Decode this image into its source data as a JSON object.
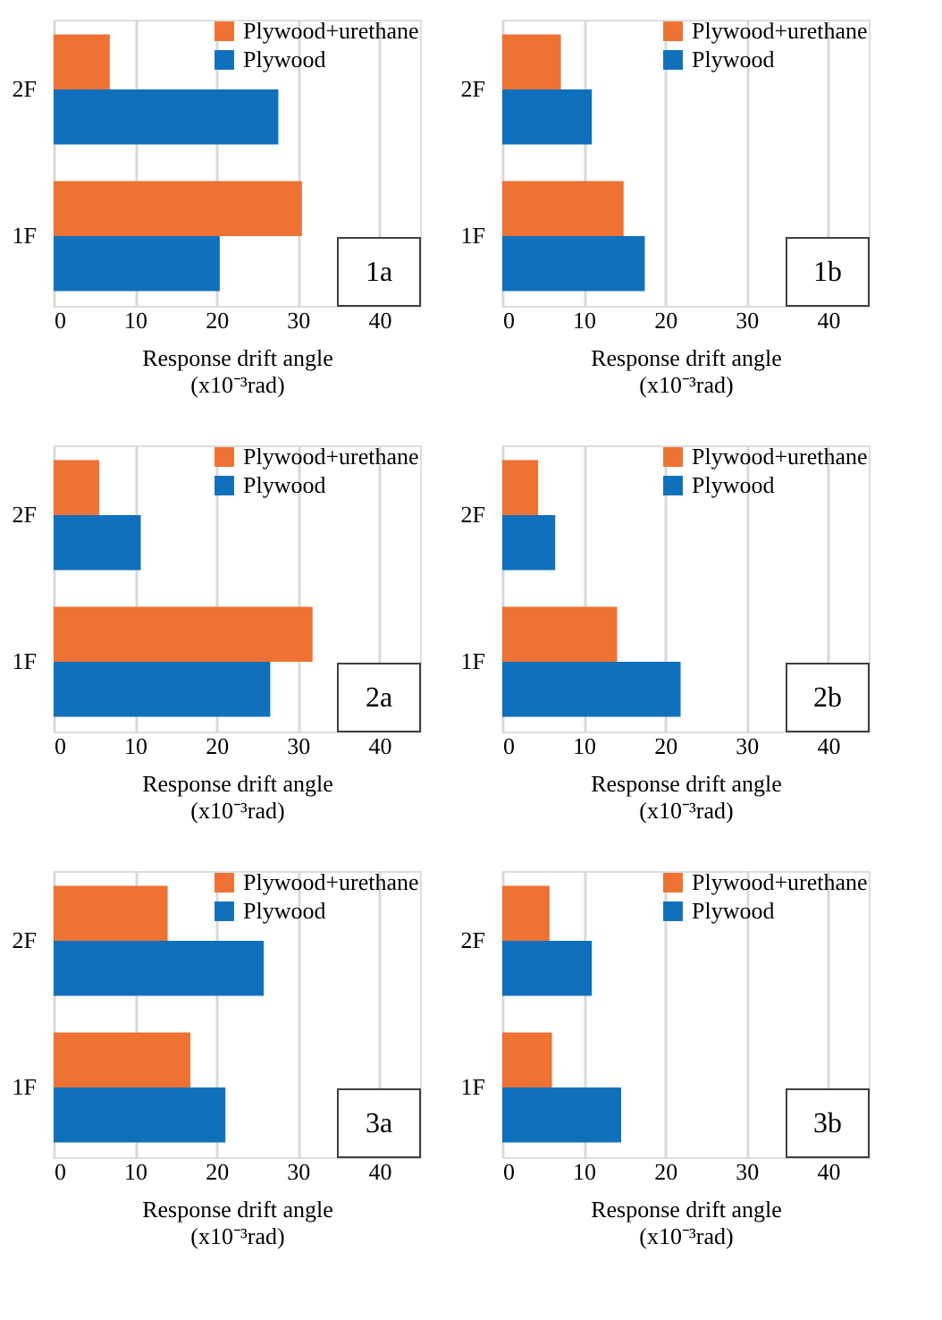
{
  "chart_data": [
    {
      "type": "bar",
      "orientation": "horizontal",
      "categories": [
        "2F",
        "1F"
      ],
      "xlabel": "Response drift angle\n(x10⁻³rad)",
      "xlim": [
        0,
        45
      ],
      "xticks": [
        0,
        10,
        20,
        30,
        40
      ],
      "grid": "x",
      "legend": "top right",
      "annotations": [
        "1a"
      ],
      "series": [
        {
          "name": "Plywood+urethane",
          "color": "#ed7233",
          "values": [
            6.9,
            30.5
          ]
        },
        {
          "name": "Plywood",
          "color": "#1170bb",
          "values": [
            27.6,
            20.4
          ]
        }
      ]
    },
    {
      "type": "bar",
      "orientation": "horizontal",
      "categories": [
        "2F",
        "1F"
      ],
      "xlabel": "Response drift angle\n(x10⁻³rad)",
      "xlim": [
        0,
        45
      ],
      "xticks": [
        0,
        10,
        20,
        30,
        40
      ],
      "grid": "x",
      "legend": "top right",
      "annotations": [
        "1b"
      ],
      "series": [
        {
          "name": "Plywood+urethane",
          "color": "#ed7233",
          "values": [
            7.2,
            14.9
          ]
        },
        {
          "name": "Plywood",
          "color": "#1170bb",
          "values": [
            11.0,
            17.5
          ]
        }
      ]
    },
    {
      "type": "bar",
      "orientation": "horizontal",
      "categories": [
        "2F",
        "1F"
      ],
      "xlabel": "Response drift angle\n(x10⁻³rad)",
      "xlim": [
        0,
        45
      ],
      "xticks": [
        0,
        10,
        20,
        30,
        40
      ],
      "grid": "x",
      "legend": "top right",
      "annotations": [
        "2a"
      ],
      "series": [
        {
          "name": "Plywood+urethane",
          "color": "#ed7233",
          "values": [
            5.6,
            31.8
          ]
        },
        {
          "name": "Plywood",
          "color": "#1170bb",
          "values": [
            10.7,
            26.6
          ]
        }
      ]
    },
    {
      "type": "bar",
      "orientation": "horizontal",
      "categories": [
        "2F",
        "1F"
      ],
      "xlabel": "Response drift angle\n(x10⁻³rad)",
      "xlim": [
        0,
        45
      ],
      "xticks": [
        0,
        10,
        20,
        30,
        40
      ],
      "grid": "x",
      "legend": "top right",
      "annotations": [
        "2b"
      ],
      "series": [
        {
          "name": "Plywood+urethane",
          "color": "#ed7233",
          "values": [
            4.4,
            14.1
          ]
        },
        {
          "name": "Plywood",
          "color": "#1170bb",
          "values": [
            6.5,
            21.9
          ]
        }
      ]
    },
    {
      "type": "bar",
      "orientation": "horizontal",
      "categories": [
        "2F",
        "1F"
      ],
      "xlabel": "Response drift angle\n(x10⁻³rad)",
      "xlim": [
        0,
        45
      ],
      "xticks": [
        0,
        10,
        20,
        30,
        40
      ],
      "grid": "x",
      "legend": "top right",
      "annotations": [
        "3a"
      ],
      "series": [
        {
          "name": "Plywood+urethane",
          "color": "#ed7233",
          "values": [
            14.0,
            16.8
          ]
        },
        {
          "name": "Plywood",
          "color": "#1170bb",
          "values": [
            25.8,
            21.1
          ]
        }
      ]
    },
    {
      "type": "bar",
      "orientation": "horizontal",
      "categories": [
        "2F",
        "1F"
      ],
      "xlabel": "Response drift angle\n(x10⁻³rad)",
      "xlim": [
        0,
        45
      ],
      "xticks": [
        0,
        10,
        20,
        30,
        40
      ],
      "grid": "x",
      "legend": "top right",
      "annotations": [
        "3b"
      ],
      "series": [
        {
          "name": "Plywood+urethane",
          "color": "#ed7233",
          "values": [
            5.8,
            6.1
          ]
        },
        {
          "name": "Plywood",
          "color": "#1170bb",
          "values": [
            11.0,
            14.6
          ]
        }
      ]
    }
  ]
}
